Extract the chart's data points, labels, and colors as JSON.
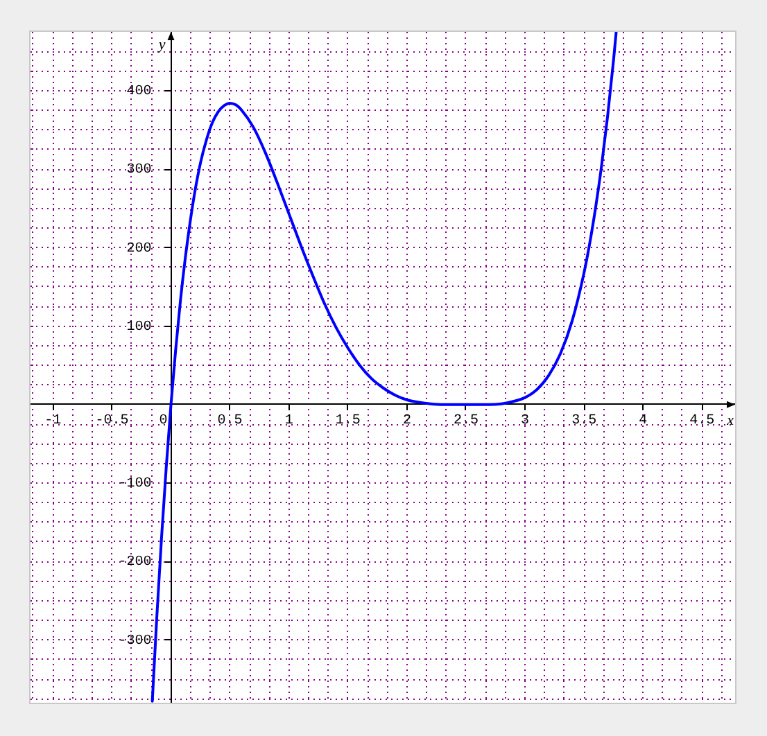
{
  "chart_data": {
    "type": "line",
    "xlabel": "x",
    "ylabel": "y",
    "x": [
      -0.158,
      -0.12,
      -0.08,
      -0.04,
      0,
      0.04,
      0.08,
      0.12,
      0.16,
      0.2,
      0.25,
      0.3,
      0.35,
      0.4,
      0.45,
      0.5,
      0.55,
      0.6,
      0.7,
      0.8,
      0.9,
      1,
      1.1,
      1.2,
      1.3,
      1.4,
      1.5,
      1.6,
      1.7,
      1.8,
      1.9,
      2,
      2.1,
      2.2,
      2.3,
      2.4,
      2.5,
      2.6,
      2.7,
      2.8,
      2.9,
      3,
      3.1,
      3.2,
      3.3,
      3.4,
      3.5,
      3.55,
      3.6,
      3.65,
      3.7,
      3.75,
      3.772
    ],
    "values": [
      -378,
      -271,
      -170,
      -80,
      0,
      70,
      132,
      185,
      230,
      269,
      308,
      337,
      359,
      373,
      381,
      384,
      382,
      375,
      353,
      321,
      283,
      243,
      203,
      165,
      129,
      98,
      72,
      50,
      33,
      21,
      12,
      6,
      3,
      1,
      0,
      0,
      0,
      0,
      0,
      1,
      4,
      9,
      19,
      37,
      65,
      107,
      168,
      207,
      253,
      306,
      368,
      439,
      474
    ],
    "color": "#0000ff",
    "xlim": [
      -1.19,
      4.78
    ],
    "ylim": [
      -380,
      475
    ],
    "xticks": [
      {
        "value": -1.167,
        "label": null
      },
      -1,
      {
        "value": -0.833,
        "label": null
      },
      {
        "value": -0.667,
        "label": null
      },
      -0.5,
      {
        "value": -0.333,
        "label": null
      },
      {
        "value": -0.167,
        "label": null
      },
      0,
      {
        "value": 0.167,
        "label": null
      },
      {
        "value": 0.333,
        "label": null
      },
      0.5,
      {
        "value": 0.667,
        "label": null
      },
      {
        "value": 0.833,
        "label": null
      },
      1,
      {
        "value": 1.167,
        "label": null
      },
      {
        "value": 1.333,
        "label": null
      },
      1.5,
      {
        "value": 1.667,
        "label": null
      },
      {
        "value": 1.833,
        "label": null
      },
      2,
      {
        "value": 2.167,
        "label": null
      },
      {
        "value": 2.333,
        "label": null
      },
      2.5,
      {
        "value": 2.667,
        "label": null
      },
      {
        "value": 2.833,
        "label": null
      },
      3,
      {
        "value": 3.167,
        "label": null
      },
      {
        "value": 3.333,
        "label": null
      },
      3.5,
      {
        "value": 3.667,
        "label": null
      },
      {
        "value": 3.833,
        "label": null
      },
      4,
      {
        "value": 4.167,
        "label": null
      },
      {
        "value": 4.333,
        "label": null
      },
      4.5,
      {
        "value": 4.667,
        "label": null
      }
    ],
    "yticks": [
      {
        "value": -375,
        "label": null
      },
      {
        "value": -350,
        "label": null
      },
      {
        "value": -325,
        "label": null
      },
      -300,
      {
        "value": -275,
        "label": null
      },
      {
        "value": -250,
        "label": null
      },
      {
        "value": -225,
        "label": null
      },
      -200,
      {
        "value": -175,
        "label": null
      },
      {
        "value": -150,
        "label": null
      },
      {
        "value": -125,
        "label": null
      },
      -100,
      {
        "value": -75,
        "label": null
      },
      {
        "value": -50,
        "label": null
      },
      {
        "value": -25,
        "label": null
      },
      {
        "value": 0,
        "label": null
      },
      {
        "value": 25,
        "label": null
      },
      {
        "value": 50,
        "label": null
      },
      {
        "value": 75,
        "label": null
      },
      100,
      {
        "value": 125,
        "label": null
      },
      {
        "value": 150,
        "label": null
      },
      {
        "value": 175,
        "label": null
      },
      200,
      {
        "value": 225,
        "label": null
      },
      {
        "value": 250,
        "label": null
      },
      {
        "value": 275,
        "label": null
      },
      300,
      {
        "value": 325,
        "label": null
      },
      {
        "value": 350,
        "label": null
      },
      {
        "value": 375,
        "label": null
      },
      400,
      {
        "value": 425,
        "label": null
      },
      {
        "value": 450,
        "label": null
      }
    ],
    "grid": true
  }
}
